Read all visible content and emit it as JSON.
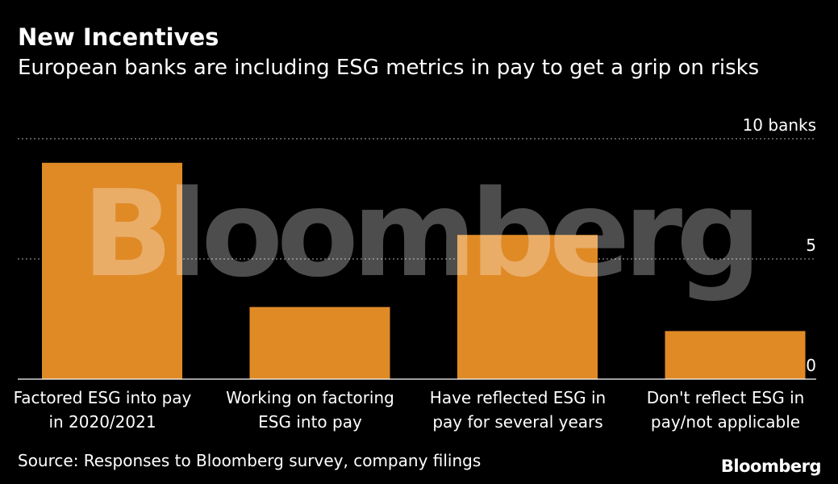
{
  "title": "New Incentives",
  "subtitle": "European banks are including ESG metrics in pay to get a grip on risks",
  "source": "Source: Responses to Bloomberg survey, company filings",
  "brand": "Bloomberg",
  "watermark": "Bloomberg",
  "colors": {
    "background": "#000000",
    "bar": "#e08a26",
    "grid": "#8a8a8a",
    "text": "#ffffff"
  },
  "chart_data": {
    "type": "bar",
    "categories": [
      [
        "Factored ESG into pay",
        "in 2020/2021"
      ],
      [
        "Working on factoring",
        "ESG into pay"
      ],
      [
        "Have reflected ESG in",
        "pay for several years"
      ],
      [
        "Don't reflect ESG in",
        "pay/not applicable"
      ]
    ],
    "values": [
      9,
      3,
      6,
      2
    ],
    "ylim": [
      0,
      10
    ],
    "yticks": [
      {
        "value": 0,
        "label": "0"
      },
      {
        "value": 5,
        "label": "5"
      },
      {
        "value": 10,
        "label": "10 banks"
      }
    ],
    "grid": true,
    "grid_style": "dotted"
  }
}
